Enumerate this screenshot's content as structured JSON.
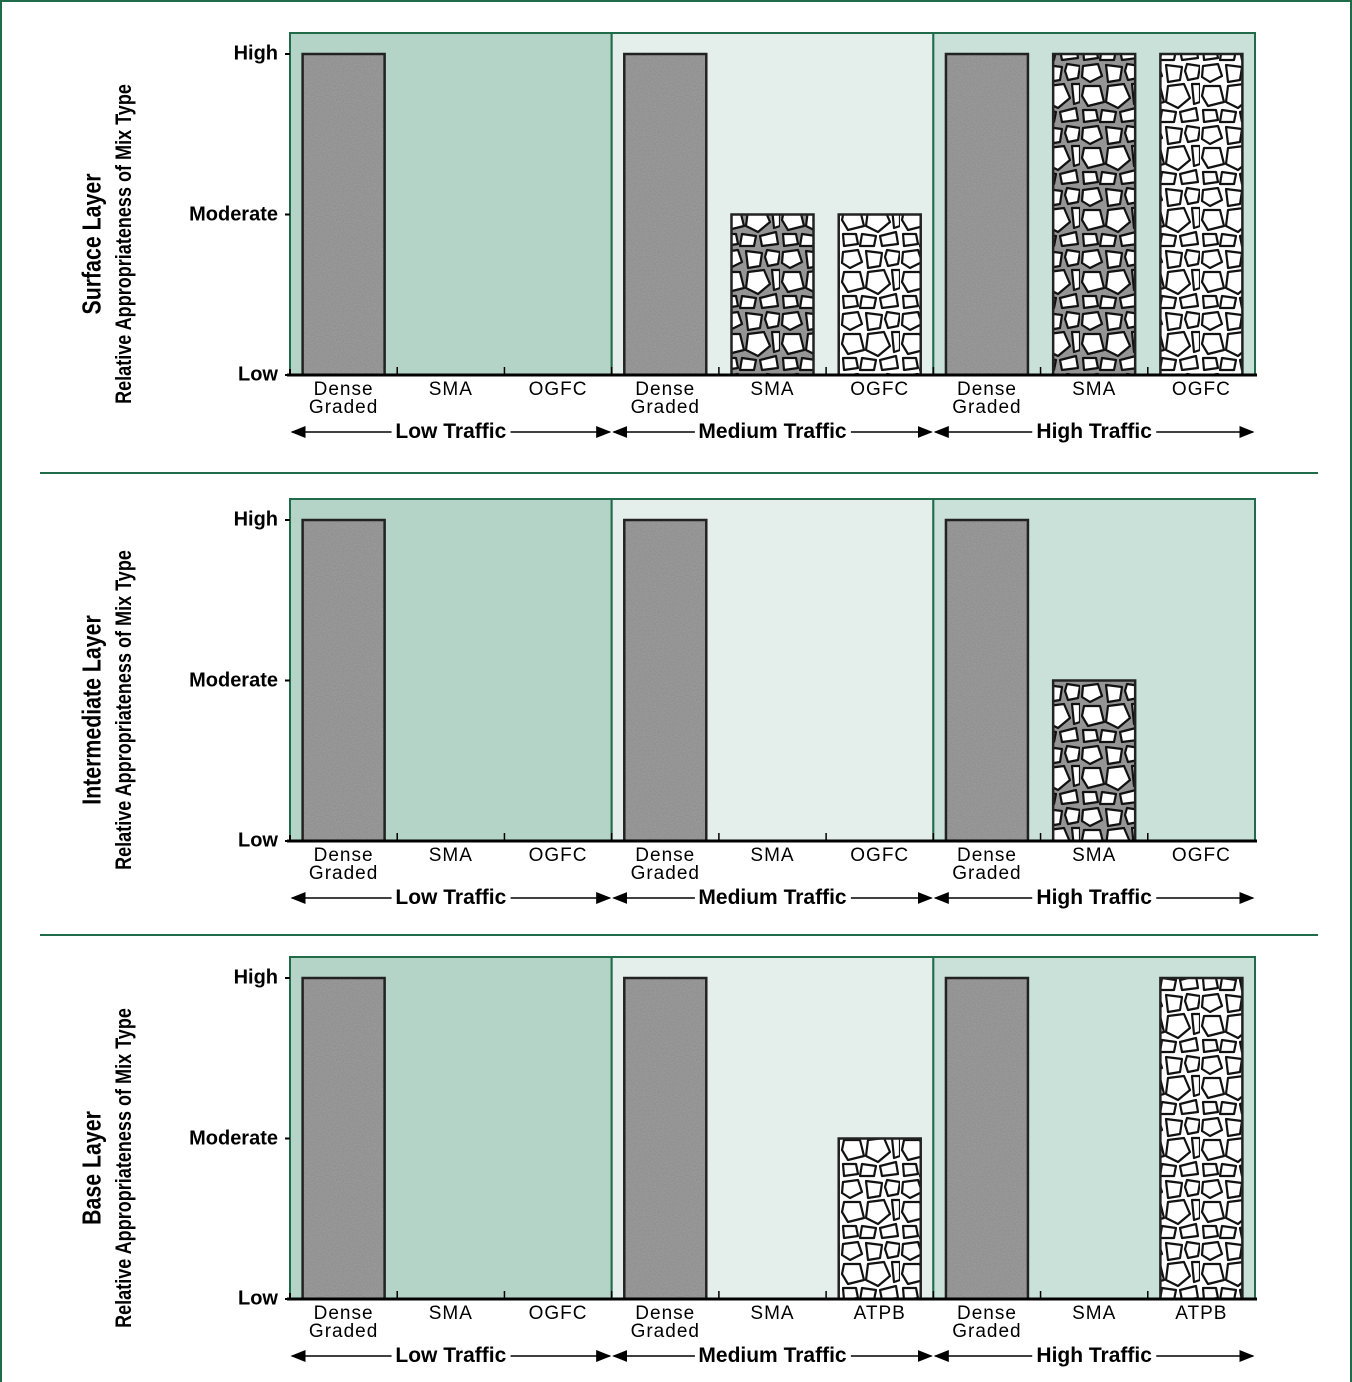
{
  "chart_data": [
    {
      "type": "bar",
      "title": "Surface Layer",
      "ylabel": "Relative Appropriateness of Mix Type",
      "categories": [
        "Dense Graded",
        "SMA",
        "OGFC",
        "Dense Graded",
        "SMA",
        "OGFC",
        "Dense Graded",
        "SMA",
        "OGFC"
      ],
      "groups": [
        "Low Traffic",
        "Medium Traffic",
        "High Traffic"
      ],
      "values": [
        2,
        0,
        0,
        2,
        1,
        1,
        2,
        2,
        2
      ],
      "ylim": [
        0,
        2
      ],
      "yticks": [
        {
          "value": 0,
          "label": "Low"
        },
        {
          "value": 1,
          "label": "Moderate"
        },
        {
          "value": 2,
          "label": "High"
        }
      ],
      "band_colors": [
        "#b5d4c8",
        "#e4efeb",
        "#c9e1d9"
      ],
      "frame_color": "#1f6b4a"
    },
    {
      "type": "bar",
      "title": "Intermediate Layer",
      "ylabel": "Relative Appropriateness of Mix Type",
      "categories": [
        "Dense Graded",
        "SMA",
        "OGFC",
        "Dense Graded",
        "SMA",
        "OGFC",
        "Dense Graded",
        "SMA",
        "OGFC"
      ],
      "groups": [
        "Low Traffic",
        "Medium Traffic",
        "High Traffic"
      ],
      "values": [
        2,
        0,
        0,
        2,
        0,
        0,
        2,
        1,
        0
      ],
      "ylim": [
        0,
        2
      ],
      "yticks": [
        {
          "value": 0,
          "label": "Low"
        },
        {
          "value": 1,
          "label": "Moderate"
        },
        {
          "value": 2,
          "label": "High"
        }
      ],
      "band_colors": [
        "#b5d4c8",
        "#e4efeb",
        "#c9e1d9"
      ],
      "frame_color": "#1f6b4a"
    },
    {
      "type": "bar",
      "title": "Base Layer",
      "ylabel": "Relative Appropriateness of Mix Type",
      "categories": [
        "Dense Graded",
        "SMA",
        "OGFC",
        "Dense Graded",
        "SMA",
        "ATPB",
        "Dense Graded",
        "SMA",
        "ATPB"
      ],
      "groups": [
        "Low Traffic",
        "Medium Traffic",
        "High Traffic"
      ],
      "values": [
        2,
        0,
        0,
        2,
        0,
        1,
        2,
        0,
        2
      ],
      "ylim": [
        0,
        2
      ],
      "yticks": [
        {
          "value": 0,
          "label": "Low"
        },
        {
          "value": 1,
          "label": "Moderate"
        },
        {
          "value": 2,
          "label": "High"
        }
      ],
      "band_colors": [
        "#b5d4c8",
        "#e4efeb",
        "#c9e1d9"
      ],
      "frame_color": "#1f6b4a"
    }
  ]
}
